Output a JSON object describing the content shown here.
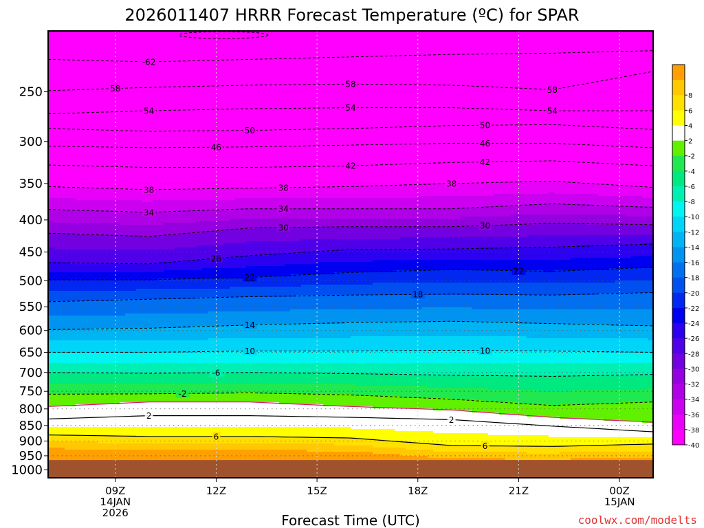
{
  "chart_data": {
    "type": "heatmap",
    "title": "2026011407 HRRR Forecast Temperature (ºC) for SPAR",
    "xlabel": "Forecast Time (UTC)",
    "ylabel": "",
    "watermark": "coolwx.com/modelts",
    "x_range_hours": [
      7,
      25
    ],
    "x_ticks": [
      {
        "hour": 9,
        "label": "09Z",
        "sub1": "14JAN",
        "sub2": "2026"
      },
      {
        "hour": 12,
        "label": "12Z",
        "sub1": "",
        "sub2": ""
      },
      {
        "hour": 15,
        "label": "15Z",
        "sub1": "",
        "sub2": ""
      },
      {
        "hour": 18,
        "label": "18Z",
        "sub1": "",
        "sub2": ""
      },
      {
        "hour": 21,
        "label": "21Z",
        "sub1": "",
        "sub2": ""
      },
      {
        "hour": 24,
        "label": "00Z",
        "sub1": "15JAN",
        "sub2": ""
      }
    ],
    "y_scale": "log-pressure",
    "y_range_hpa": [
      1030,
      200
    ],
    "y_ticks": [
      250,
      300,
      350,
      400,
      450,
      500,
      550,
      600,
      650,
      700,
      750,
      800,
      850,
      900,
      950,
      1000
    ],
    "surface_pressure_hpa": 965,
    "ground_color": "#A0522D",
    "grid": true,
    "legend_position": "right",
    "colorbar": [
      {
        "color": "#FF00FF",
        "label": "-40"
      },
      {
        "color": "#E800F8",
        "label": "-38"
      },
      {
        "color": "#CC00F0",
        "label": "-36"
      },
      {
        "color": "#B000E8",
        "label": "-34"
      },
      {
        "color": "#9400E0",
        "label": "-32"
      },
      {
        "color": "#7200E0",
        "label": "-30"
      },
      {
        "color": "#5000E8",
        "label": "-28"
      },
      {
        "color": "#2C00F0",
        "label": "-26"
      },
      {
        "color": "#0000F0",
        "label": "-24"
      },
      {
        "color": "#0028F0",
        "label": "-22"
      },
      {
        "color": "#0050F0",
        "label": "-20"
      },
      {
        "color": "#0070F0",
        "label": "-18"
      },
      {
        "color": "#0094F0",
        "label": "-16"
      },
      {
        "color": "#00B4F4",
        "label": "-14"
      },
      {
        "color": "#00D4F8",
        "label": "-12"
      },
      {
        "color": "#00F4F0",
        "label": "-10"
      },
      {
        "color": "#00F0B4",
        "label": "-8"
      },
      {
        "color": "#00E880",
        "label": "-6"
      },
      {
        "color": "#20E850",
        "label": "-4"
      },
      {
        "color": "#60F000",
        "label": "-2"
      },
      {
        "color": "#FFFFFF",
        "label": "2"
      },
      {
        "color": "#FFFF00",
        "label": "4"
      },
      {
        "color": "#FFE000",
        "label": "6"
      },
      {
        "color": "#FFC800",
        "label": "8"
      },
      {
        "color": "#FFA000",
        "label": ""
      }
    ],
    "isotherms": [
      {
        "value": -62,
        "pressure": [
          222,
          224,
          222,
          220,
          218,
          217,
          215
        ],
        "labels": [
          {
            "hour": 10,
            "text": "-62"
          }
        ]
      },
      {
        "value": -58,
        "pressure": [
          249,
          246,
          244,
          243,
          244,
          248,
          232
        ],
        "labels": [
          {
            "hour": 9,
            "text": "58"
          },
          {
            "hour": 16,
            "text": "58"
          },
          {
            "hour": 22,
            "text": "58"
          }
        ]
      },
      {
        "value": -54,
        "pressure": [
          271,
          268,
          266,
          265,
          265,
          268,
          268
        ],
        "labels": [
          {
            "hour": 10,
            "text": "54"
          },
          {
            "hour": 16,
            "text": "54"
          },
          {
            "hour": 22,
            "text": "54"
          }
        ]
      },
      {
        "value": -50,
        "pressure": [
          286,
          289,
          288,
          286,
          283,
          282,
          287
        ],
        "labels": [
          {
            "hour": 13,
            "text": "50"
          },
          {
            "hour": 20,
            "text": "50"
          }
        ]
      },
      {
        "value": -46,
        "pressure": [
          305,
          307,
          306,
          304,
          302,
          302,
          307
        ],
        "labels": [
          {
            "hour": 12,
            "text": "46"
          },
          {
            "hour": 20,
            "text": "46"
          }
        ]
      },
      {
        "value": -42,
        "pressure": [
          327,
          330,
          330,
          328,
          324,
          322,
          328
        ],
        "labels": [
          {
            "hour": 16,
            "text": "42"
          },
          {
            "hour": 20,
            "text": "42"
          }
        ]
      },
      {
        "value": -38,
        "pressure": [
          354,
          358,
          356,
          354,
          350,
          347,
          355
        ],
        "labels": [
          {
            "hour": 10,
            "text": "38"
          },
          {
            "hour": 14,
            "text": "38"
          },
          {
            "hour": 19,
            "text": "38"
          }
        ]
      },
      {
        "value": -34,
        "pressure": [
          385,
          389,
          384,
          384,
          384,
          377,
          382
        ],
        "labels": [
          {
            "hour": 10,
            "text": "34"
          },
          {
            "hour": 14,
            "text": "34"
          }
        ]
      },
      {
        "value": -30,
        "pressure": [
          420,
          425,
          412,
          410,
          410,
          405,
          407
        ],
        "labels": [
          {
            "hour": 14,
            "text": "30"
          },
          {
            "hour": 20,
            "text": "30"
          }
        ]
      },
      {
        "value": -26,
        "pressure": [
          468,
          470,
          456,
          446,
          445,
          442,
          437
        ],
        "labels": [
          {
            "hour": 12,
            "text": "26"
          }
        ]
      },
      {
        "value": -22,
        "pressure": [
          498,
          498,
          494,
          485,
          480,
          483,
          476
        ],
        "labels": [
          {
            "hour": 13,
            "text": "22"
          },
          {
            "hour": 21,
            "text": "22"
          }
        ]
      },
      {
        "value": -18,
        "pressure": [
          540,
          535,
          530,
          527,
          525,
          527,
          522
        ],
        "labels": [
          {
            "hour": 18,
            "text": "18"
          }
        ]
      },
      {
        "value": -14,
        "pressure": [
          598,
          595,
          588,
          583,
          580,
          585,
          590
        ],
        "labels": [
          {
            "hour": 13,
            "text": "14"
          }
        ]
      },
      {
        "value": -10,
        "pressure": [
          650,
          650,
          647,
          647,
          645,
          647,
          650
        ],
        "labels": [
          {
            "hour": 13,
            "text": "10"
          },
          {
            "hour": 20,
            "text": "10"
          }
        ]
      },
      {
        "value": -6,
        "pressure": [
          700,
          702,
          700,
          703,
          707,
          710,
          705
        ],
        "labels": [
          {
            "hour": 12,
            "text": "-6"
          }
        ]
      },
      {
        "value": -2,
        "pressure": [
          758,
          757,
          754,
          760,
          772,
          790,
          780
        ],
        "labels": [
          {
            "hour": 11,
            "text": "-2"
          }
        ]
      },
      {
        "value": 0,
        "pressure": [
          793,
          780,
          780,
          793,
          803,
          825,
          840
        ],
        "labels": []
      },
      {
        "value": 2,
        "pressure": [
          830,
          820,
          820,
          825,
          832,
          852,
          870
        ],
        "labels": [
          {
            "hour": 10,
            "text": "2"
          },
          {
            "hour": 19,
            "text": "2"
          }
        ]
      },
      {
        "value": 6,
        "pressure": [
          880,
          885,
          885,
          890,
          915,
          918,
          910
        ],
        "labels": [
          {
            "hour": 12,
            "text": "6"
          },
          {
            "hour": 20,
            "text": "6"
          }
        ]
      }
    ]
  }
}
